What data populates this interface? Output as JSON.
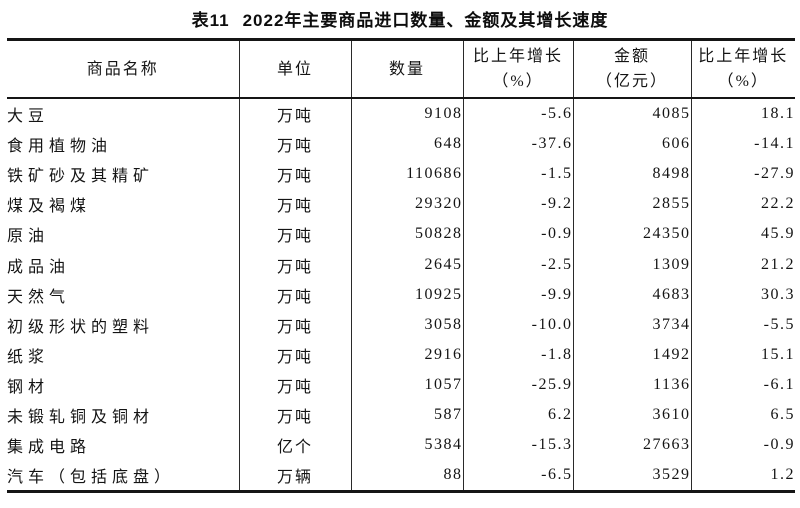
{
  "title": {
    "label": "表11",
    "text": "2022年主要商品进口数量、金额及其增长速度"
  },
  "columns": [
    {
      "line1": "商品名称"
    },
    {
      "line1": "单位"
    },
    {
      "line1": "数量"
    },
    {
      "line1": "比上年增长",
      "line2": "（%）"
    },
    {
      "line1": "金额",
      "line2": "（亿元）"
    },
    {
      "line1": "比上年增长",
      "line2": "（%）"
    }
  ],
  "rows": [
    {
      "name": "大豆",
      "unit": "万吨",
      "quantity": "9108",
      "quantity_growth": "-5.6",
      "amount": "4085",
      "amount_growth": "18.1"
    },
    {
      "name": "食用植物油",
      "unit": "万吨",
      "quantity": "648",
      "quantity_growth": "-37.6",
      "amount": "606",
      "amount_growth": "-14.1"
    },
    {
      "name": "铁矿砂及其精矿",
      "unit": "万吨",
      "quantity": "110686",
      "quantity_growth": "-1.5",
      "amount": "8498",
      "amount_growth": "-27.9"
    },
    {
      "name": "煤及褐煤",
      "unit": "万吨",
      "quantity": "29320",
      "quantity_growth": "-9.2",
      "amount": "2855",
      "amount_growth": "22.2"
    },
    {
      "name": "原油",
      "unit": "万吨",
      "quantity": "50828",
      "quantity_growth": "-0.9",
      "amount": "24350",
      "amount_growth": "45.9"
    },
    {
      "name": "成品油",
      "unit": "万吨",
      "quantity": "2645",
      "quantity_growth": "-2.5",
      "amount": "1309",
      "amount_growth": "21.2"
    },
    {
      "name": "天然气",
      "unit": "万吨",
      "quantity": "10925",
      "quantity_growth": "-9.9",
      "amount": "4683",
      "amount_growth": "30.3"
    },
    {
      "name": "初级形状的塑料",
      "unit": "万吨",
      "quantity": "3058",
      "quantity_growth": "-10.0",
      "amount": "3734",
      "amount_growth": "-5.5"
    },
    {
      "name": "纸浆",
      "unit": "万吨",
      "quantity": "2916",
      "quantity_growth": "-1.8",
      "amount": "1492",
      "amount_growth": "15.1"
    },
    {
      "name": "钢材",
      "unit": "万吨",
      "quantity": "1057",
      "quantity_growth": "-25.9",
      "amount": "1136",
      "amount_growth": "-6.1"
    },
    {
      "name": "未锻轧铜及铜材",
      "unit": "万吨",
      "quantity": "587",
      "quantity_growth": "6.2",
      "amount": "3610",
      "amount_growth": "6.5"
    },
    {
      "name": "集成电路",
      "unit": "亿个",
      "quantity": "5384",
      "quantity_growth": "-15.3",
      "amount": "27663",
      "amount_growth": "-0.9"
    },
    {
      "name": "汽车（包括底盘）",
      "unit": "万辆",
      "quantity": "88",
      "quantity_growth": "-6.5",
      "amount": "3529",
      "amount_growth": "1.2"
    }
  ]
}
